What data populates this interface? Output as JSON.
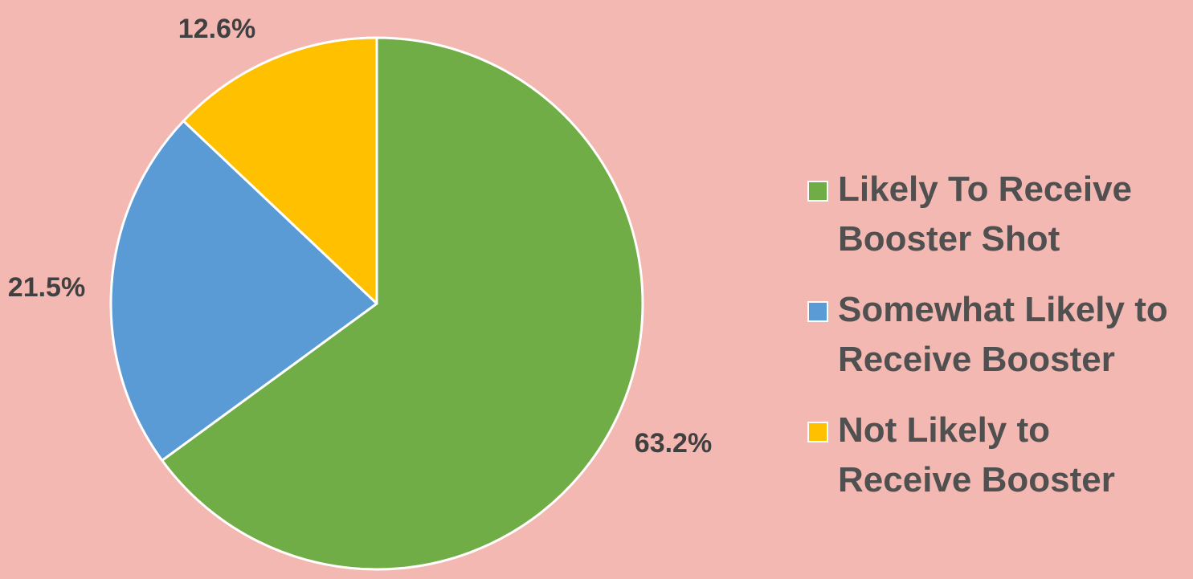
{
  "chart_data": {
    "type": "pie",
    "categories": [
      "Likely To Receive Booster Shot",
      "Somewhat Likely to Receive Booster",
      "Not Likely to Receive Booster"
    ],
    "values": [
      63.2,
      21.5,
      12.6
    ],
    "data_labels": [
      "63.2%",
      "21.5%",
      "12.6%"
    ],
    "colors": [
      "#70ad47",
      "#5b9bd5",
      "#ffc000"
    ],
    "start_angle_deg": 0,
    "direction": "clockwise",
    "legend_position": "right",
    "background_color": "#f4b8b2",
    "slice_border_color": "#ffffff",
    "label_color": "#404040"
  },
  "legend": {
    "items": [
      {
        "label": "Likely To Receive Booster Shot",
        "color": "#70ad47"
      },
      {
        "label": "Somewhat Likely to Receive Booster",
        "color": "#5b9bd5"
      },
      {
        "label": "Not Likely to Receive Booster",
        "color": "#ffc000"
      }
    ]
  }
}
